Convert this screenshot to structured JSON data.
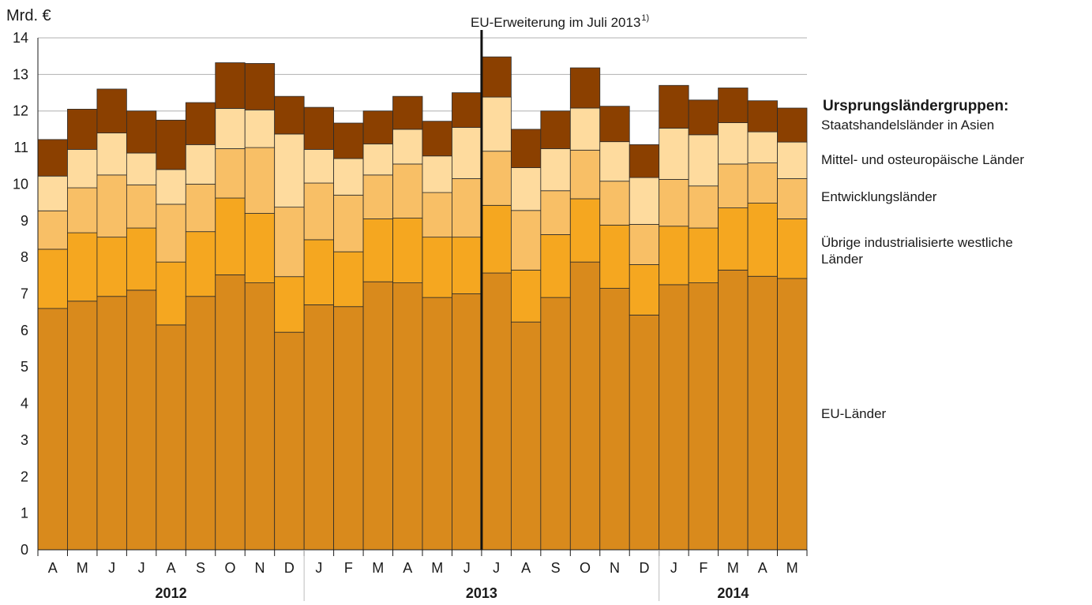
{
  "chart_data": {
    "type": "bar",
    "stacked": true,
    "ylabel": "Mrd. €",
    "ylim": [
      0,
      14
    ],
    "yticks": [
      "0",
      "1",
      "2",
      "3",
      "4",
      "5",
      "6",
      "7",
      "8",
      "9",
      "10",
      "11",
      "12",
      "13",
      "14"
    ],
    "grid": true,
    "categories": [
      "A",
      "M",
      "J",
      "J",
      "A",
      "S",
      "O",
      "N",
      "D",
      "J",
      "F",
      "M",
      "A",
      "M",
      "J",
      "J",
      "A",
      "S",
      "O",
      "N",
      "D",
      "J",
      "F",
      "M",
      "A",
      "M"
    ],
    "years": [
      {
        "label": "2012",
        "start": 0,
        "end": 8
      },
      {
        "label": "2013",
        "start": 9,
        "end": 20
      },
      {
        "label": "2014",
        "start": 21,
        "end": 25
      }
    ],
    "annotation": {
      "text": "EU-Erweiterung im Juli 2013",
      "sup": "1)",
      "before_index": 15
    },
    "legend_title": "Ursprungsländergruppen:",
    "series": [
      {
        "name": "EU-Länder",
        "color": "#d98a1c",
        "values": [
          6.6,
          6.8,
          6.93,
          7.1,
          6.15,
          6.93,
          7.52,
          7.3,
          5.95,
          6.7,
          6.65,
          7.33,
          7.3,
          6.9,
          7.0,
          7.57,
          6.23,
          6.9,
          7.87,
          7.15,
          6.42,
          7.25,
          7.3,
          7.65,
          7.48,
          7.42
        ]
      },
      {
        "name": "Übrige industrialisierte westliche Länder",
        "color": "#f5a720",
        "values": [
          1.62,
          1.87,
          1.62,
          1.7,
          1.72,
          1.77,
          2.1,
          1.9,
          1.52,
          1.78,
          1.5,
          1.72,
          1.77,
          1.65,
          1.55,
          1.85,
          1.42,
          1.72,
          1.73,
          1.73,
          1.38,
          1.6,
          1.5,
          1.7,
          2.0,
          1.63
        ]
      },
      {
        "name": "Entwicklungsländer",
        "color": "#f8bf66",
        "values": [
          1.05,
          1.23,
          1.7,
          1.18,
          1.58,
          1.3,
          1.35,
          1.8,
          1.9,
          1.55,
          1.55,
          1.2,
          1.48,
          1.22,
          1.6,
          1.48,
          1.63,
          1.2,
          1.33,
          1.2,
          1.1,
          1.28,
          1.15,
          1.2,
          1.1,
          1.1
        ]
      },
      {
        "name": "Mittel- und osteuropäische Länder",
        "color": "#fedb9e",
        "values": [
          0.95,
          1.05,
          1.15,
          0.87,
          0.95,
          1.08,
          1.1,
          1.03,
          2.0,
          0.92,
          1.0,
          0.85,
          0.95,
          1.0,
          1.4,
          1.48,
          1.17,
          1.15,
          1.15,
          1.08,
          1.28,
          1.4,
          1.4,
          1.13,
          0.85,
          1.0
        ]
      },
      {
        "name": "Staatshandelsländer in Asien",
        "color": "#8b4000",
        "values": [
          1.0,
          1.1,
          1.2,
          1.15,
          1.35,
          1.15,
          1.25,
          1.27,
          1.03,
          1.15,
          0.97,
          0.9,
          0.9,
          0.95,
          0.95,
          1.1,
          1.05,
          1.03,
          1.1,
          0.97,
          0.9,
          1.17,
          0.95,
          0.95,
          0.85,
          0.93
        ]
      }
    ]
  },
  "legend": {
    "title": "Ursprungsländergruppen:",
    "items": [
      {
        "text": "Staatshandelsländer in Asien"
      },
      {
        "text": "Mittel- und osteuropäische Länder"
      },
      {
        "text": "Entwicklungsländer"
      },
      {
        "text": "Übrige industrialisierte westliche Länder"
      },
      {
        "text": "EU-Länder"
      }
    ]
  }
}
